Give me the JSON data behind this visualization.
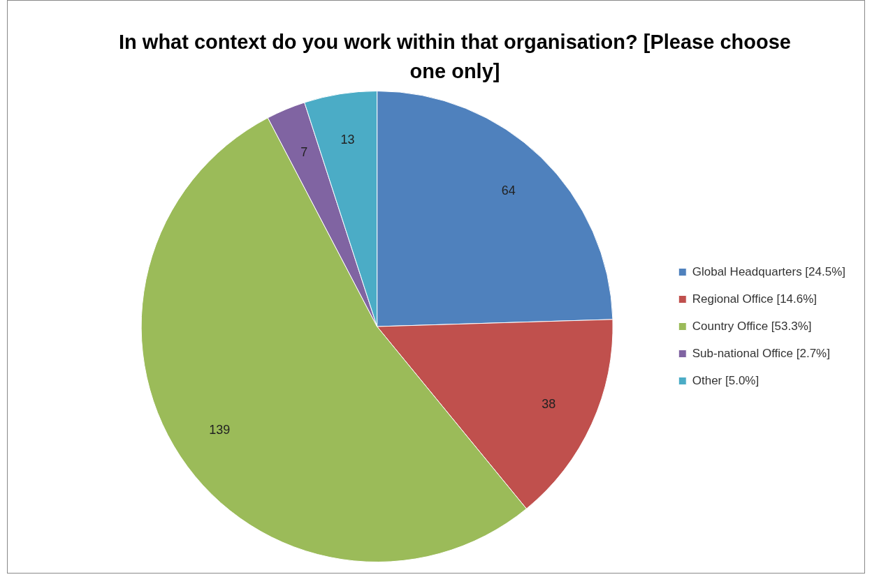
{
  "chart_data": {
    "type": "pie",
    "title": "In what context do you work within that organisation? [Please choose one only]",
    "categories": [
      "Global Headquarters [24.5%]",
      "Regional Office [14.6%]",
      "Country Office [53.3%]",
      "Sub-national Office [2.7%]",
      "Other [5.0%]"
    ],
    "values": [
      64,
      38,
      139,
      7,
      13
    ],
    "colors": [
      "#4f81bd",
      "#c0504d",
      "#9bbb59",
      "#8064a2",
      "#4bacc6"
    ],
    "data_labels": true,
    "legend": "right"
  }
}
